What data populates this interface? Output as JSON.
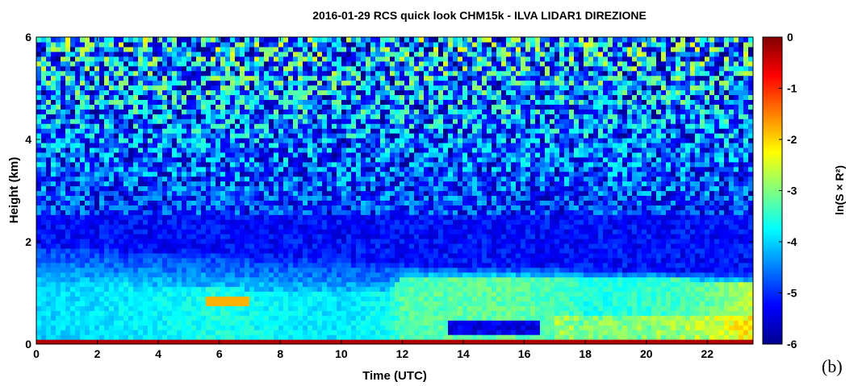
{
  "panel_label": "(b)",
  "chart_data": {
    "type": "heatmap",
    "title": "2016-01-29 RCS quick look CHM15k - ILVA LIDAR1 DIREZIONE",
    "xlabel": "Time (UTC)",
    "ylabel": "Height (km)",
    "xlim": [
      0,
      23.5
    ],
    "ylim": [
      0,
      6
    ],
    "xticks": [
      "0",
      "2",
      "4",
      "6",
      "8",
      "10",
      "12",
      "14",
      "16",
      "18",
      "20",
      "22"
    ],
    "yticks": [
      "0",
      "2",
      "4",
      "6"
    ],
    "colorbar": {
      "label": "ln(S × R²)",
      "range": [
        -6,
        0
      ],
      "ticks": [
        "0",
        "-1",
        "-2",
        "-3",
        "-4",
        "-5",
        "-6"
      ],
      "colormap": "jet"
    },
    "time_utc": [
      0,
      2,
      4,
      6,
      8,
      10,
      11.5,
      12,
      14,
      16,
      17.5,
      18,
      20,
      22,
      23.5
    ],
    "layer_top_km": [
      1.25,
      1.2,
      1.15,
      1.1,
      1.05,
      1.0,
      1.05,
      1.35,
      1.35,
      1.35,
      1.35,
      1.3,
      1.3,
      1.25,
      1.25
    ],
    "boundary_top_km": [
      1.9,
      1.85,
      1.8,
      1.75,
      1.7,
      1.65,
      1.6,
      1.55,
      1.5,
      1.5,
      1.5,
      1.45,
      1.45,
      1.4,
      1.4
    ],
    "layer_value": [
      -4.0,
      -3.9,
      -3.8,
      -3.6,
      -3.8,
      -3.9,
      -3.7,
      -3.3,
      -3.2,
      -3.2,
      -3.4,
      -3.6,
      -3.5,
      -3.2,
      -2.6
    ],
    "features": [
      {
        "label": "surface signal",
        "height_km": 0.08,
        "value": -0.3
      },
      {
        "label": "aerosol plume",
        "time_utc": [
          5.5,
          7
        ],
        "height_km": 0.85,
        "value": -1.8
      },
      {
        "label": "clear gap",
        "time_utc": [
          13.5,
          16.5
        ],
        "height_km": 0.3,
        "value": -5.7
      }
    ]
  }
}
